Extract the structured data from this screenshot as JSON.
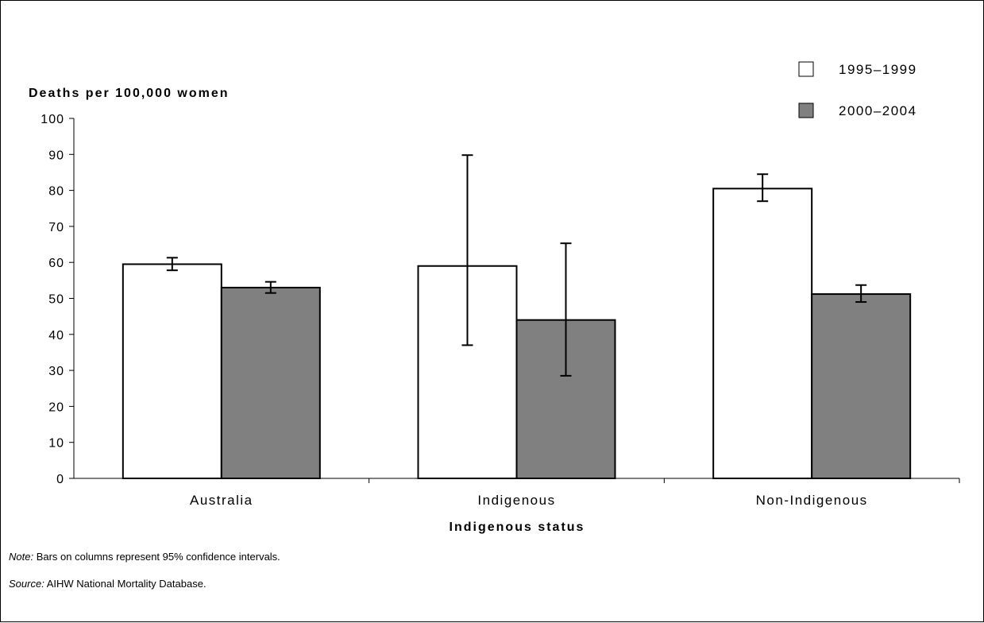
{
  "chart_data": {
    "type": "bar",
    "ylabel": "Deaths per 100,000 women",
    "xlabel": "Indigenous status",
    "ylim": [
      0,
      100
    ],
    "yticks": [
      0,
      10,
      20,
      30,
      40,
      50,
      60,
      70,
      80,
      90,
      100
    ],
    "categories": [
      "Australia",
      "Indigenous",
      "Non-Indigenous"
    ],
    "series": [
      {
        "name": "1995–1999",
        "color": "#ffffff",
        "values": [
          59.5,
          59,
          80.5
        ],
        "ci_low": [
          57.8,
          37,
          77
        ],
        "ci_high": [
          61.3,
          89.8,
          84.5
        ]
      },
      {
        "name": "2000–2004",
        "color": "#808080",
        "values": [
          53,
          44,
          51.2
        ],
        "ci_low": [
          51.5,
          28.5,
          49
        ],
        "ci_high": [
          54.6,
          65.3,
          53.7
        ]
      }
    ],
    "legend_position": "top-right",
    "grid": false
  },
  "notes": {
    "note_label": "Note:",
    "note_text": " Bars on columns represent 95% confidence intervals.",
    "source_label": "Source:",
    "source_text": " AIHW National Mortality Database."
  }
}
